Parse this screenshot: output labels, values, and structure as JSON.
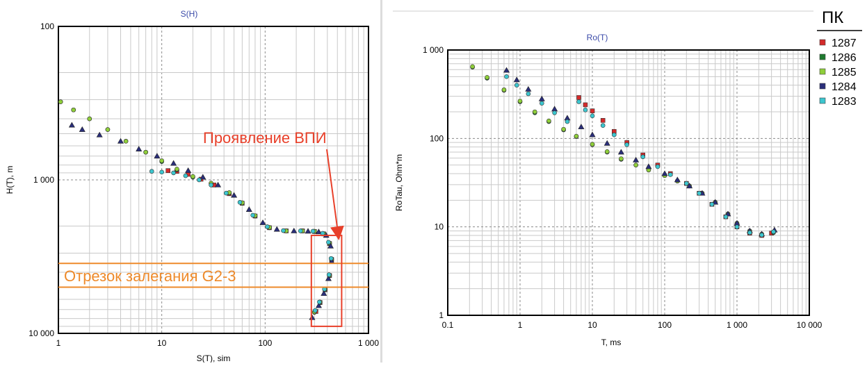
{
  "legend": {
    "title": "ПК",
    "entries": [
      {
        "label": "1287",
        "color": "#d42a2a"
      },
      {
        "label": "1286",
        "color": "#1e7a2e"
      },
      {
        "label": "1285",
        "color": "#8fcf3a"
      },
      {
        "label": "1284",
        "color": "#2a2e7a"
      },
      {
        "label": "1283",
        "color": "#3cc6cf"
      }
    ]
  },
  "annotations": {
    "vpi_label": "Проявление ВПИ",
    "interval_label": "Отрезок залегания G2-3",
    "vpi_color": "#e8402a",
    "interval_color": "#ee8a2a"
  },
  "chart_data": [
    {
      "type": "scatter",
      "title": "S(H)",
      "xlabel": "S(T), sim",
      "ylabel": "H(T), m",
      "x_scale": "log",
      "y_scale": "log",
      "y_inverted": true,
      "xlim": [
        1,
        1000
      ],
      "ylim": [
        100,
        10000
      ],
      "xticks": [
        "1",
        "10",
        "100",
        "1 000"
      ],
      "yticks": [
        "100",
        "1 000",
        "10 000"
      ],
      "grid": true,
      "vpi_region": {
        "x": [
          280,
          550
        ],
        "y": [
          2300,
          9000
        ]
      },
      "interval_lines_y": [
        3500,
        5000
      ],
      "series": [
        {
          "name": "1287",
          "color": "#d42a2a",
          "marker": "square",
          "points": [
            [
              11.5,
              870
            ],
            [
              14,
              880
            ],
            [
              18,
              920
            ],
            [
              24,
              990
            ],
            [
              32,
              1080
            ],
            [
              45,
              1230
            ],
            [
              60,
              1420
            ],
            [
              80,
              1720
            ],
            [
              110,
              2050
            ],
            [
              160,
              2150
            ],
            [
              230,
              2150
            ],
            [
              300,
              2170
            ],
            [
              370,
              2250
            ],
            [
              420,
              2600
            ],
            [
              440,
              3300
            ],
            [
              420,
              4200
            ],
            [
              380,
              5200
            ],
            [
              340,
              6300
            ],
            [
              310,
              7200
            ]
          ]
        },
        {
          "name": "1286",
          "color": "#1e7a2e",
          "marker": "circle",
          "points": [
            [
              1.05,
              310
            ],
            [
              1.4,
              350
            ],
            [
              2,
              400
            ],
            [
              3,
              470
            ],
            [
              4.5,
              560
            ],
            [
              7,
              660
            ],
            [
              10,
              760
            ],
            [
              14,
              860
            ],
            [
              20,
              960
            ],
            [
              30,
              1060
            ],
            [
              45,
              1220
            ],
            [
              60,
              1420
            ],
            [
              80,
              1720
            ],
            [
              110,
              2050
            ],
            [
              160,
              2150
            ],
            [
              230,
              2150
            ],
            [
              300,
              2170
            ],
            [
              370,
              2250
            ],
            [
              420,
              2600
            ],
            [
              440,
              3300
            ],
            [
              420,
              4200
            ],
            [
              380,
              5200
            ],
            [
              340,
              6300
            ],
            [
              300,
              7300
            ]
          ]
        },
        {
          "name": "1285",
          "color": "#8fcf3a",
          "marker": "circle",
          "points": [
            [
              1.05,
              310
            ],
            [
              1.4,
              350
            ],
            [
              2,
              400
            ],
            [
              3,
              470
            ],
            [
              4.5,
              560
            ],
            [
              7,
              660
            ],
            [
              10,
              750
            ],
            [
              14,
              850
            ],
            [
              20,
              950
            ],
            [
              30,
              1050
            ],
            [
              45,
              1210
            ],
            [
              60,
              1410
            ],
            [
              80,
              1710
            ],
            [
              110,
              2040
            ],
            [
              160,
              2150
            ],
            [
              230,
              2150
            ],
            [
              300,
              2160
            ],
            [
              370,
              2240
            ],
            [
              420,
              2580
            ],
            [
              440,
              3280
            ],
            [
              420,
              4180
            ],
            [
              380,
              5150
            ],
            [
              340,
              6250
            ],
            [
              300,
              7250
            ]
          ]
        },
        {
          "name": "1284",
          "color": "#2a2e7a",
          "marker": "triangle",
          "points": [
            [
              1.35,
              440
            ],
            [
              1.7,
              470
            ],
            [
              2.5,
              510
            ],
            [
              4,
              560
            ],
            [
              6,
              630
            ],
            [
              9,
              700
            ],
            [
              13,
              780
            ],
            [
              18,
              870
            ],
            [
              25,
              960
            ],
            [
              35,
              1080
            ],
            [
              50,
              1260
            ],
            [
              70,
              1560
            ],
            [
              95,
              1900
            ],
            [
              130,
              2100
            ],
            [
              190,
              2150
            ],
            [
              260,
              2160
            ],
            [
              330,
              2180
            ],
            [
              390,
              2300
            ],
            [
              430,
              2700
            ],
            [
              440,
              3400
            ],
            [
              410,
              4400
            ],
            [
              370,
              5500
            ],
            [
              330,
              6600
            ],
            [
              285,
              7900
            ]
          ]
        },
        {
          "name": "1283",
          "color": "#3cc6cf",
          "marker": "circle",
          "points": [
            [
              8,
              880
            ],
            [
              10,
              890
            ],
            [
              13,
              900
            ],
            [
              17,
              940
            ],
            [
              23,
              1000
            ],
            [
              30,
              1080
            ],
            [
              42,
              1220
            ],
            [
              57,
              1400
            ],
            [
              76,
              1700
            ],
            [
              105,
              2020
            ],
            [
              150,
              2140
            ],
            [
              220,
              2150
            ],
            [
              290,
              2160
            ],
            [
              360,
              2230
            ],
            [
              410,
              2550
            ],
            [
              435,
              3250
            ],
            [
              415,
              4150
            ],
            [
              375,
              5150
            ],
            [
              335,
              6250
            ],
            [
              305,
              7100
            ]
          ]
        }
      ]
    },
    {
      "type": "scatter",
      "title": "Ro(T)",
      "xlabel": "T, ms",
      "ylabel": "RoTau, Ohm*m",
      "x_scale": "log",
      "y_scale": "log",
      "xlim": [
        0.1,
        10000
      ],
      "ylim": [
        1,
        1000
      ],
      "xticks": [
        "0.1",
        "1",
        "10",
        "100",
        "1 000",
        "10 000"
      ],
      "yticks": [
        "1",
        "10",
        "100",
        "1 000"
      ],
      "grid": true,
      "series": [
        {
          "name": "1287",
          "color": "#d42a2a",
          "marker": "square",
          "points": [
            [
              6.5,
              290
            ],
            [
              8,
              240
            ],
            [
              10,
              205
            ],
            [
              14,
              160
            ],
            [
              20,
              120
            ],
            [
              30,
              90
            ],
            [
              50,
              65
            ],
            [
              80,
              50
            ],
            [
              120,
              40
            ],
            [
              200,
              31
            ],
            [
              300,
              24
            ],
            [
              450,
              18
            ],
            [
              700,
              13
            ],
            [
              1000,
              10
            ],
            [
              1500,
              8.5
            ],
            [
              2200,
              8
            ],
            [
              3000,
              8.5
            ]
          ]
        },
        {
          "name": "1286",
          "color": "#1e7a2e",
          "marker": "circle",
          "points": [
            [
              0.22,
              640
            ],
            [
              0.35,
              480
            ],
            [
              0.6,
              350
            ],
            [
              1,
              260
            ],
            [
              1.6,
              195
            ],
            [
              2.5,
              155
            ],
            [
              4,
              125
            ],
            [
              6,
              105
            ],
            [
              10,
              85
            ],
            [
              16,
              70
            ],
            [
              25,
              58
            ],
            [
              40,
              50
            ],
            [
              60,
              44
            ],
            [
              100,
              38
            ],
            [
              150,
              33
            ],
            [
              220,
              29
            ],
            [
              330,
              24
            ],
            [
              500,
              19
            ],
            [
              750,
              14
            ],
            [
              1000,
              11
            ],
            [
              1500,
              9
            ],
            [
              2200,
              8.2
            ],
            [
              3200,
              8.6
            ]
          ]
        },
        {
          "name": "1285",
          "color": "#8fcf3a",
          "marker": "circle",
          "points": [
            [
              0.22,
              650
            ],
            [
              0.35,
              490
            ],
            [
              0.6,
              355
            ],
            [
              1,
              265
            ],
            [
              1.6,
              200
            ],
            [
              2.5,
              158
            ],
            [
              4,
              127
            ],
            [
              6,
              106
            ],
            [
              10,
              86
            ],
            [
              16,
              71
            ],
            [
              25,
              59
            ],
            [
              40,
              50
            ],
            [
              60,
              44
            ],
            [
              100,
              38
            ],
            [
              150,
              33
            ],
            [
              220,
              29
            ],
            [
              330,
              24
            ],
            [
              500,
              19
            ],
            [
              750,
              14
            ],
            [
              1000,
              11
            ],
            [
              1500,
              9
            ],
            [
              2200,
              8.3
            ],
            [
              3200,
              8.8
            ]
          ]
        },
        {
          "name": "1284",
          "color": "#2a2e7a",
          "marker": "triangle",
          "points": [
            [
              0.65,
              590
            ],
            [
              0.9,
              460
            ],
            [
              1.3,
              360
            ],
            [
              2,
              280
            ],
            [
              3,
              215
            ],
            [
              4.5,
              170
            ],
            [
              7,
              135
            ],
            [
              10,
              110
            ],
            [
              16,
              88
            ],
            [
              25,
              70
            ],
            [
              40,
              57
            ],
            [
              60,
              48
            ],
            [
              100,
              40
            ],
            [
              150,
              34
            ],
            [
              220,
              29
            ],
            [
              330,
              24
            ],
            [
              500,
              19
            ],
            [
              750,
              14
            ],
            [
              1000,
              11
            ],
            [
              1500,
              9
            ],
            [
              2200,
              8.3
            ],
            [
              3300,
              9.2
            ]
          ]
        },
        {
          "name": "1283",
          "color": "#3cc6cf",
          "marker": "circle",
          "points": [
            [
              0.65,
              500
            ],
            [
              0.9,
              400
            ],
            [
              1.3,
              320
            ],
            [
              2,
              250
            ],
            [
              3,
              195
            ],
            [
              4.5,
              155
            ],
            [
              6.5,
              260
            ],
            [
              8,
              210
            ],
            [
              10,
              180
            ],
            [
              14,
              140
            ],
            [
              20,
              110
            ],
            [
              30,
              85
            ],
            [
              50,
              62
            ],
            [
              80,
              48
            ],
            [
              120,
              39
            ],
            [
              200,
              31
            ],
            [
              300,
              24
            ],
            [
              450,
              18
            ],
            [
              700,
              13
            ],
            [
              1000,
              10
            ],
            [
              1500,
              8.6
            ],
            [
              2200,
              8.1
            ],
            [
              3200,
              8.8
            ]
          ]
        }
      ]
    }
  ]
}
